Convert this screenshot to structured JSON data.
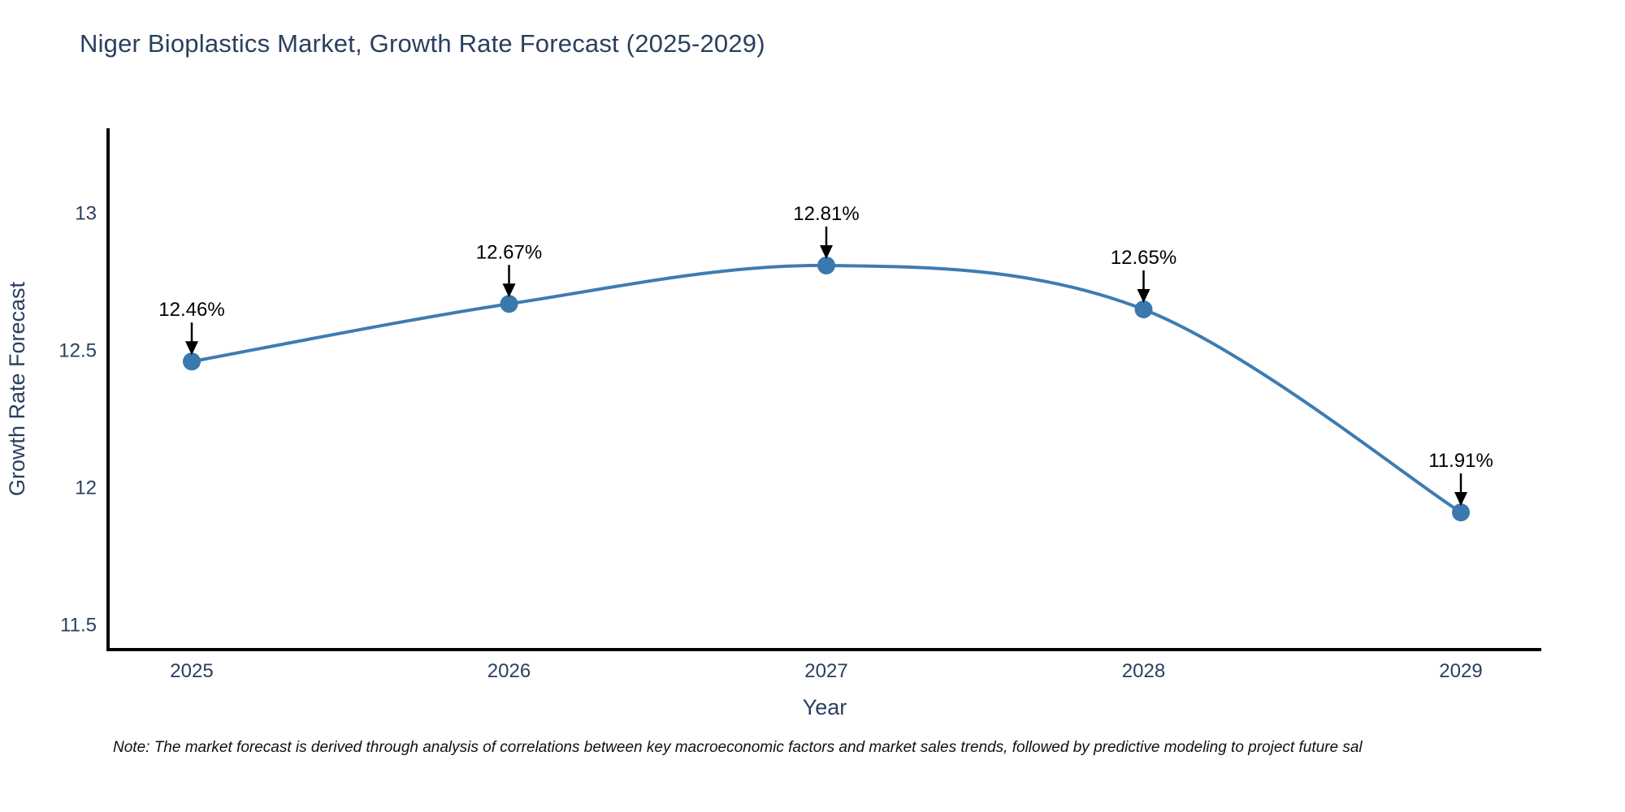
{
  "header": {
    "title": "Niger Bioplastics Market, Growth Rate Forecast (2025-2029)"
  },
  "note": "Note: The market forecast is derived through analysis of correlations between key macroeconomic factors and market sales trends, followed by predictive modeling to project future sal",
  "chart_data": {
    "type": "line",
    "title": "Niger Bioplastics Market, Growth Rate Forecast (2025-2029)",
    "x": [
      2025,
      2026,
      2027,
      2028,
      2029
    ],
    "series": [
      {
        "name": "Growth Rate Forecast",
        "values": [
          12.46,
          12.67,
          12.81,
          12.65,
          11.91
        ]
      }
    ],
    "point_labels": [
      "12.46%",
      "12.67%",
      "12.81%",
      "12.65%",
      "11.91%"
    ],
    "xlabel": "Year",
    "ylabel": "Growth Rate Forecast",
    "ylim": [
      11.41,
      13.31
    ],
    "yticks": [
      11.5,
      12,
      12.5,
      13
    ],
    "xticks": [
      "2025",
      "2026",
      "2027",
      "2028",
      "2029"
    ],
    "grid": false,
    "legend": false,
    "smoothing": "spline",
    "colors": {
      "line": "#3e7cb1",
      "marker": "#3a78ad",
      "axis_line": "#000000",
      "axis_text": "#2a3f5f",
      "annotation": "#000000",
      "background": "#ffffff"
    }
  }
}
